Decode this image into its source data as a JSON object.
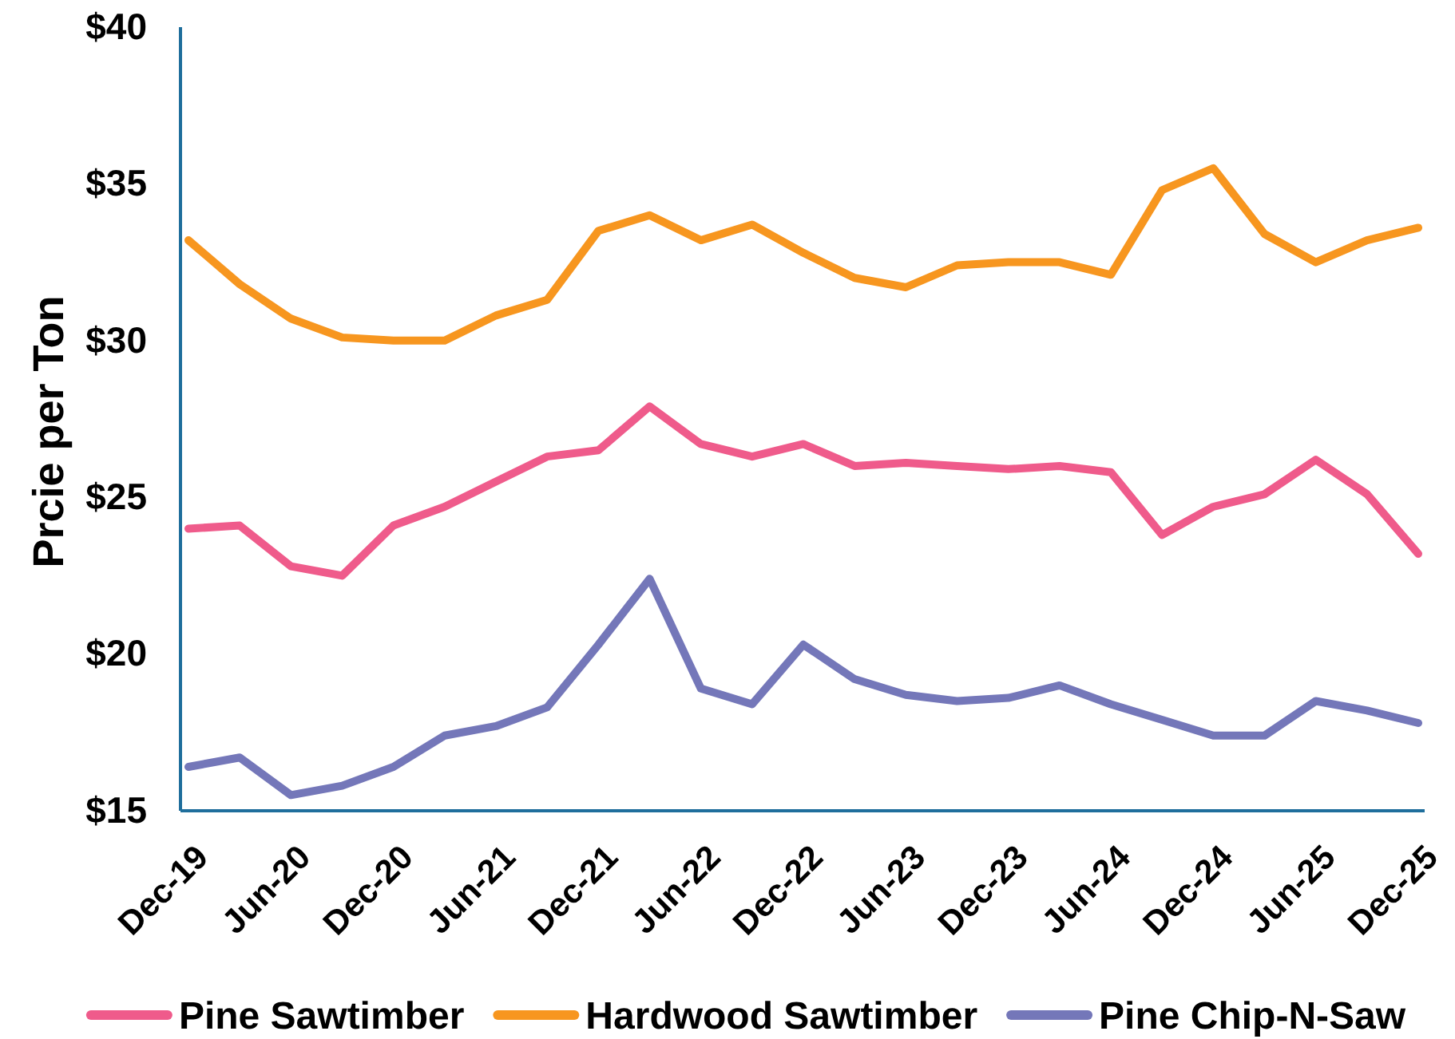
{
  "chart_data": {
    "type": "line",
    "categories": [
      "Dec-19",
      null,
      "Jun-20",
      null,
      "Dec-20",
      null,
      "Jun-21",
      null,
      "Dec-21",
      null,
      "Jun-22",
      null,
      "Dec-22",
      null,
      "Jun-23",
      null,
      "Dec-23",
      null,
      "Jun-24",
      null,
      "Dec-24",
      null,
      "Jun-25",
      null,
      "Dec-25"
    ],
    "series": [
      {
        "name": "Pine Sawtimber",
        "color": "#ef5b8b",
        "values": [
          24.0,
          24.1,
          22.8,
          22.5,
          24.1,
          24.7,
          25.5,
          26.3,
          26.5,
          27.9,
          26.7,
          26.3,
          26.7,
          26.0,
          26.1,
          26.0,
          25.9,
          26.0,
          25.8,
          23.8,
          24.7,
          25.1,
          26.2,
          25.1,
          23.2
        ]
      },
      {
        "name": "Hardwood Sawtimber",
        "color": "#f7961f",
        "values": [
          33.2,
          31.8,
          30.7,
          30.1,
          30.0,
          30.0,
          30.8,
          31.3,
          33.5,
          34.0,
          33.2,
          33.7,
          32.8,
          32.0,
          31.7,
          32.4,
          32.5,
          32.5,
          32.1,
          34.8,
          35.5,
          33.4,
          32.5,
          33.2,
          33.6
        ]
      },
      {
        "name": "Pine Chip-N-Saw",
        "color": "#7477b9",
        "values": [
          16.4,
          16.7,
          15.5,
          15.8,
          16.4,
          17.4,
          17.7,
          18.3,
          20.3,
          22.4,
          18.9,
          18.4,
          20.3,
          19.2,
          18.7,
          18.5,
          18.6,
          19.0,
          18.4,
          17.9,
          17.4,
          17.4,
          18.5,
          18.2,
          17.8
        ]
      }
    ],
    "ylabel": "Prcie per Ton",
    "ylim": [
      15,
      40
    ],
    "yticks": [
      {
        "value": 15,
        "label": "$15"
      },
      {
        "value": 20,
        "label": "$20"
      },
      {
        "value": 25,
        "label": "$25"
      },
      {
        "value": 30,
        "label": "$30"
      },
      {
        "value": 35,
        "label": "$35"
      },
      {
        "value": 40,
        "label": "$40"
      }
    ],
    "grid": false,
    "legend": "bottom",
    "marker": "none",
    "line_style": "solid"
  }
}
